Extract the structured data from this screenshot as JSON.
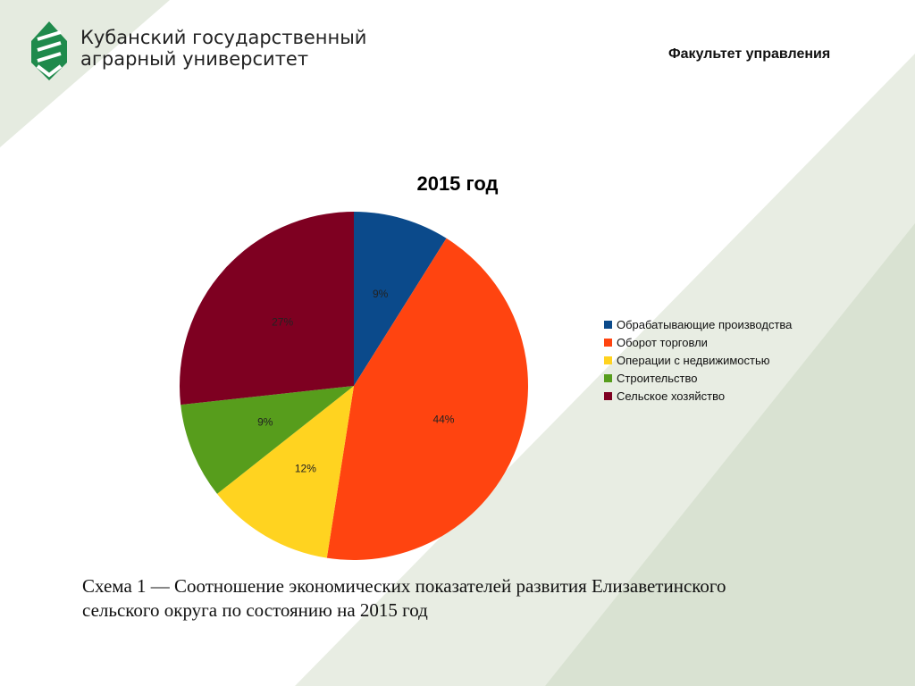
{
  "header": {
    "university_line1": "Кубанский государственный",
    "university_line2": "аграрный университет",
    "faculty": "Факультет управления"
  },
  "colors": {
    "bg_band": "#e5ebe0",
    "bg_band_dark": "#d6e0cf",
    "logo": "#1f8a4c"
  },
  "chart_data": {
    "type": "pie",
    "title": "2015 год",
    "categories": [
      "Обрабатывающие производства",
      "Оборот торговли",
      "Операции с недвижимостью",
      "Строительство",
      "Сельское хозяйство"
    ],
    "values": [
      9,
      44,
      12,
      9,
      27
    ],
    "labels": [
      "9%",
      "44%",
      "12%",
      "9%",
      "27%"
    ],
    "colors": [
      "#0b4a8b",
      "#ff4410",
      "#ffd320",
      "#579d1c",
      "#7e0021"
    ],
    "legend_position": "right"
  },
  "caption": {
    "line1": "Схема 1 — Соотношение  экономических показателей развития Елизаветинского",
    "line2": "сельского округа по состоянию на 2015 год"
  }
}
